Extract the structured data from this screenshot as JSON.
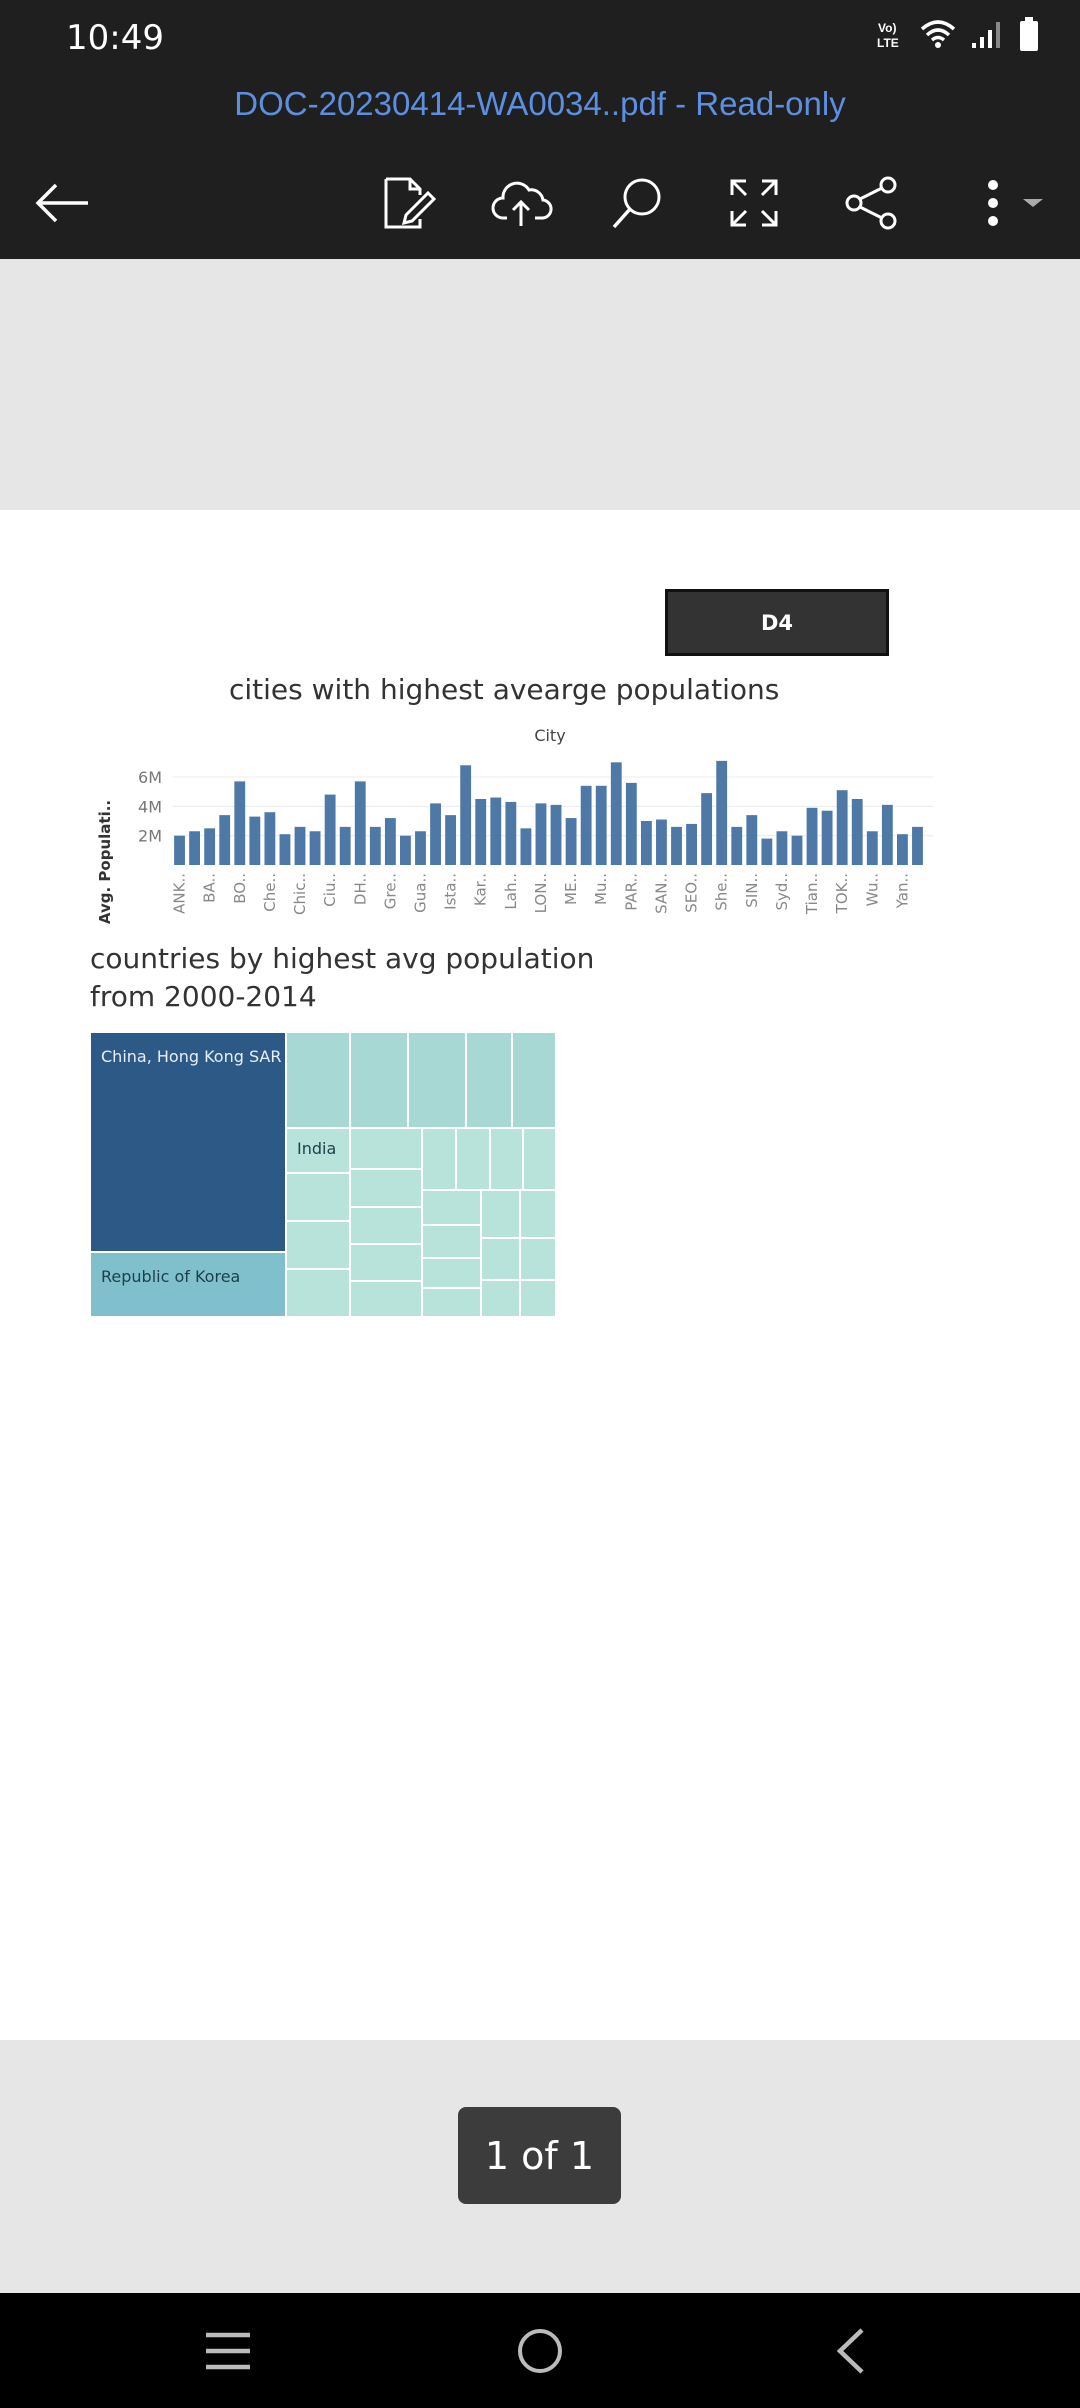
{
  "status_bar": {
    "time": "10:49",
    "network_label": "Vo) LTE",
    "icons": [
      "volte-icon",
      "wifi-icon",
      "signal-icon",
      "battery-icon"
    ]
  },
  "header": {
    "title": "DOC-20230414-WA0034..pdf - Read-only",
    "tools": [
      "back-arrow-icon",
      "edit-document-icon",
      "cloud-upload-icon",
      "search-icon",
      "fullscreen-icon",
      "share-icon",
      "more-options-icon"
    ]
  },
  "document": {
    "tag_label": "D4",
    "chart1": {
      "title": "cities with highest avearge populations",
      "header": "City",
      "ylabel": "Avg. Populati..",
      "ytick_labels": [
        "6M",
        "4M",
        "2M"
      ]
    },
    "chart2": {
      "title_line1": "countries by highest avg population",
      "title_line2": "from 2000-2014",
      "labels": {
        "china": "China, Hong Kong SAR",
        "korea": "Republic of Korea",
        "india": "India"
      }
    }
  },
  "chart_data": {
    "type": "bar",
    "title": "cities with highest avearge populations",
    "xlabel": "City",
    "ylabel": "Avg. Populati..",
    "ylim": [
      0,
      7.5
    ],
    "unit": "M",
    "yticks": [
      2,
      4,
      6
    ],
    "tick_labels": [
      "ANK..",
      "BA..",
      "BO..",
      "Che..",
      "Chic..",
      "Ciu..",
      "DH..",
      "Gre..",
      "Gua..",
      "Ista..",
      "Kar..",
      "Lah..",
      "LON..",
      "ME..",
      "Mu..",
      "PAR..",
      "SAN..",
      "SEO..",
      "She..",
      "SIN..",
      "Syd..",
      "Tian..",
      "TOK..",
      "Wu..",
      "Yan.."
    ],
    "tick_every": 2,
    "values": [
      2.0,
      2.3,
      2.5,
      3.4,
      5.7,
      3.3,
      3.6,
      2.1,
      2.6,
      2.3,
      4.8,
      2.6,
      5.7,
      2.6,
      3.2,
      2.0,
      2.3,
      4.2,
      3.4,
      6.8,
      4.5,
      4.6,
      4.3,
      2.5,
      4.2,
      4.1,
      3.2,
      5.4,
      5.4,
      7.0,
      5.6,
      3.0,
      3.1,
      2.6,
      2.8,
      4.9,
      7.1,
      2.6,
      3.4,
      1.8,
      2.3,
      2.0,
      3.9,
      3.7,
      5.1,
      4.5,
      2.3,
      4.1,
      2.1,
      2.6
    ],
    "color": "#4e79a7"
  },
  "treemap_colors": {
    "china": "#2c5985",
    "korea": "#7fc0cc",
    "light": "#a8d8d3",
    "lighter": "#b7e3da"
  },
  "page_indicator": {
    "label": "1 of 1"
  },
  "nav_bar": {
    "buttons": [
      "recent-apps-icon",
      "home-icon",
      "nav-back-icon"
    ]
  }
}
